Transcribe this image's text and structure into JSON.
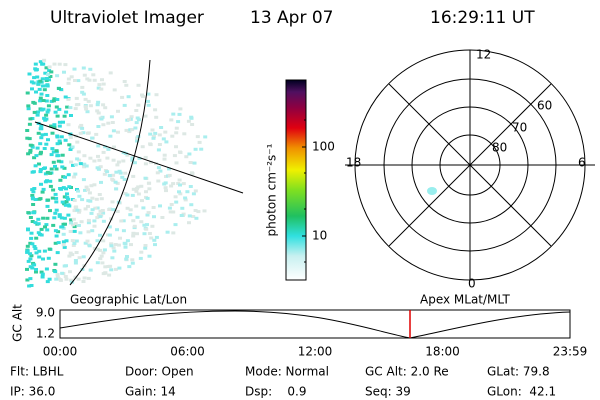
{
  "header": {
    "instrument": "Ultraviolet Imager",
    "date": "13 Apr 07",
    "time": "16:29:11 UT"
  },
  "colorbar": {
    "label": "photon cm⁻²s⁻¹",
    "ticks": [
      "100",
      "10"
    ]
  },
  "polar": {
    "mlt": [
      "12",
      "6",
      "0",
      "18"
    ],
    "lat": [
      "60",
      "70",
      "80"
    ]
  },
  "timeline": {
    "left_label": "Geographic Lat/Lon",
    "right_label": "Apex MLat/MLT",
    "axis_title": "GC Alt",
    "alt_ticks": [
      "9.0",
      "1.2"
    ],
    "times": [
      "00:00",
      "06:00",
      "12:00",
      "18:00",
      "23:59"
    ]
  },
  "footer": {
    "rows": [
      [
        "Flt: LBHL",
        "Door: Open",
        "Mode: Normal",
        "GC Alt: 2.0 Re",
        "GLat: 79.8"
      ],
      [
        "IP: 36.0",
        "Gain: 14",
        "Dsp:    0.9",
        "Seq: 39",
        "GLon:  42.1"
      ]
    ]
  }
}
